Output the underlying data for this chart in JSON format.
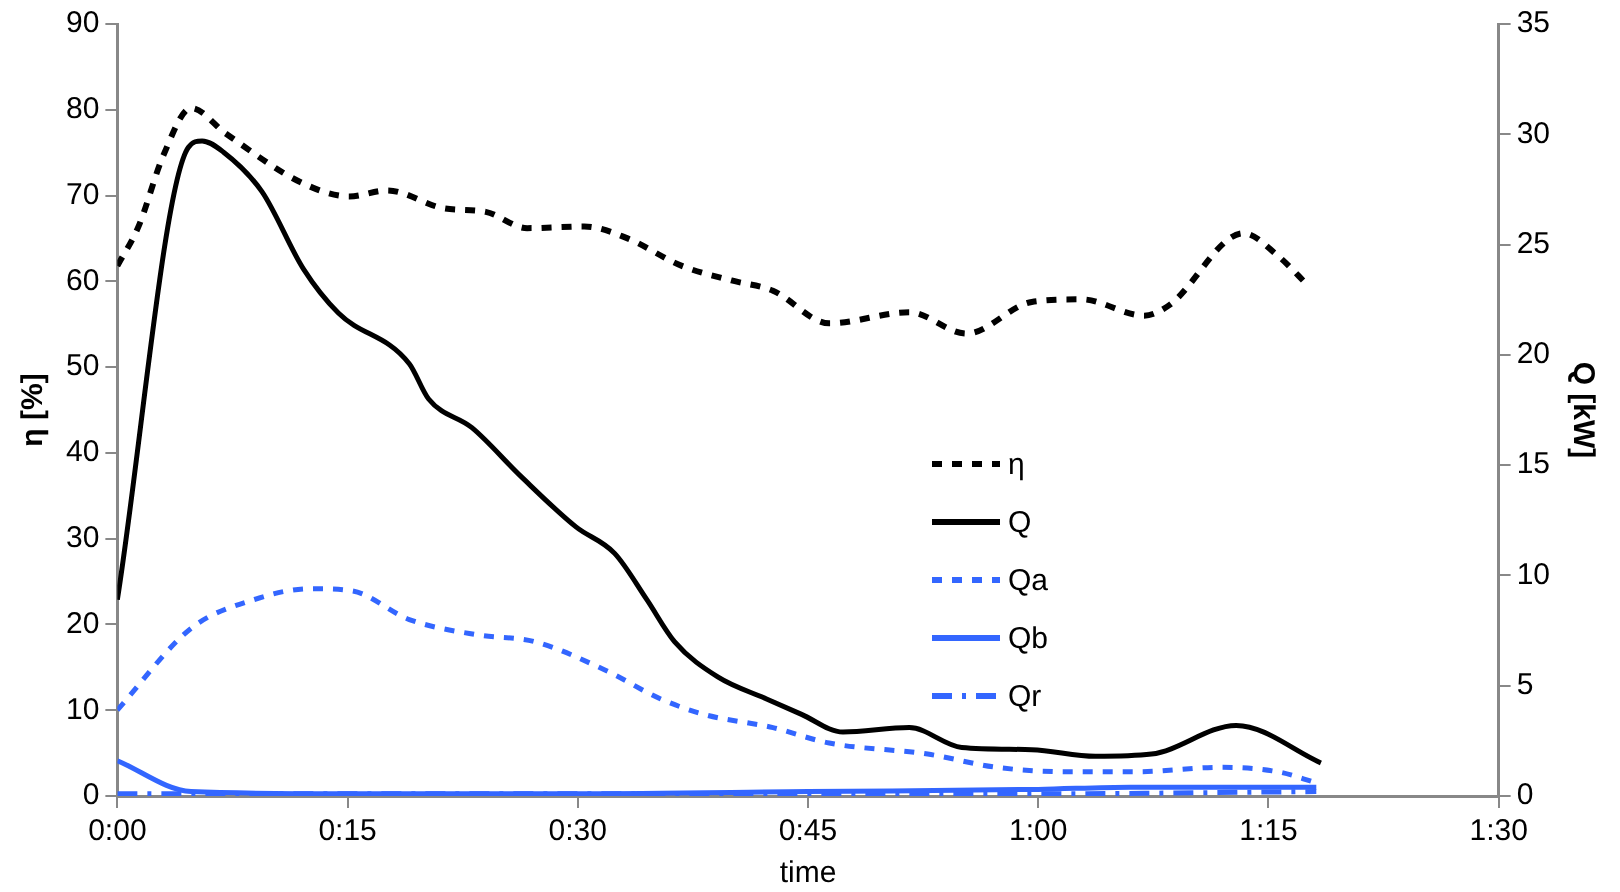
{
  "chart_data": {
    "type": "line",
    "xlabel": "time",
    "ylabel": "η [%]",
    "y2label": "Q [kW]",
    "xlim": [
      0,
      1.5
    ],
    "xticks": [
      {
        "value": 0,
        "label": "0:00"
      },
      {
        "value": 0.25,
        "label": "0:15"
      },
      {
        "value": 0.5,
        "label": "0:30"
      },
      {
        "value": 0.75,
        "label": "0:45"
      },
      {
        "value": 1,
        "label": "1:00"
      },
      {
        "value": 1.25,
        "label": "1:15"
      },
      {
        "value": 1.5,
        "label": "1:30"
      }
    ],
    "ylim": [
      0,
      90
    ],
    "yticks": [
      0,
      10,
      20,
      30,
      40,
      50,
      60,
      70,
      80,
      90
    ],
    "y2lim": [
      0,
      35
    ],
    "y2ticks": [
      0,
      5,
      10,
      15,
      20,
      25,
      30,
      35
    ],
    "grid": false,
    "legend": "center",
    "marker": "none",
    "series": [
      {
        "name": "η",
        "color": "#000000",
        "line_style": "dashed",
        "x": [
          0,
          0.023,
          0.05,
          0.08,
          0.118,
          0.202,
          0.252,
          0.293,
          0.355,
          0.4,
          0.445,
          0.507,
          0.552,
          0.613,
          0.667,
          0.712,
          0.773,
          0.86,
          0.922,
          0.993,
          1.047,
          1.115,
          1.142,
          1.223,
          1.26,
          1.295
        ],
        "values": [
          61.8,
          66.4,
          74.7,
          80.2,
          77.2,
          71.4,
          69.9,
          70.6,
          68.5,
          68.1,
          66.2,
          66.4,
          65.1,
          61.8,
          60.1,
          58.9,
          55.1,
          56.4,
          53.9,
          57.6,
          57.9,
          56,
          57.2,
          65.6,
          63,
          59.3
        ]
      },
      {
        "name": "Q",
        "color": "#000000",
        "line_style": "solid",
        "axis": "y2",
        "x": [
          0,
          0.077,
          0.092,
          0.115,
          0.157,
          0.202,
          0.24,
          0.317,
          0.338,
          0.385,
          0.438,
          0.498,
          0.54,
          0.575,
          0.605,
          0.652,
          0.705,
          0.743,
          0.788,
          0.86,
          0.917,
          0.993,
          1.062,
          1.123,
          1.215,
          1.307
        ],
        "values": [
          8.9,
          29.4,
          29.7,
          29.2,
          27.4,
          23.9,
          21.9,
          19.6,
          18,
          16.7,
          14.5,
          12.2,
          11,
          8.9,
          7,
          5.4,
          4.4,
          3.7,
          2.9,
          3.1,
          2.2,
          2.1,
          1.8,
          1.9,
          3.2,
          1.5
        ]
      },
      {
        "name": "Qa",
        "color": "#3366ff",
        "line_style": "dashed",
        "axis": "y2",
        "x": [
          0,
          0.08,
          0.148,
          0.21,
          0.255,
          0.317,
          0.392,
          0.453,
          0.53,
          0.59,
          0.637,
          0.712,
          0.773,
          0.88,
          0.955,
          1.032,
          1.108,
          1.198,
          1.26,
          1.302
        ],
        "values": [
          3.9,
          7.6,
          8.9,
          9.4,
          9.3,
          8,
          7.3,
          7,
          5.7,
          4.4,
          3.7,
          3.1,
          2.4,
          1.9,
          1.3,
          1.1,
          1.1,
          1.3,
          1.1,
          0.6
        ]
      },
      {
        "name": "Qb",
        "color": "#3366ff",
        "line_style": "solid",
        "axis": "y2",
        "x": [
          0,
          0.08,
          0.25,
          0.5,
          0.75,
          1,
          1.1,
          1.302
        ],
        "values": [
          1.6,
          0.2,
          0.1,
          0.1,
          0.2,
          0.3,
          0.4,
          0.4
        ]
      },
      {
        "name": "Qr",
        "color": "#3366ff",
        "line_style": "dashdot",
        "axis": "y2",
        "x": [
          0,
          0.25,
          0.5,
          0.75,
          1,
          1.302
        ],
        "values": [
          0.1,
          0.1,
          0.1,
          0.1,
          0.1,
          0.2
        ]
      }
    ]
  }
}
